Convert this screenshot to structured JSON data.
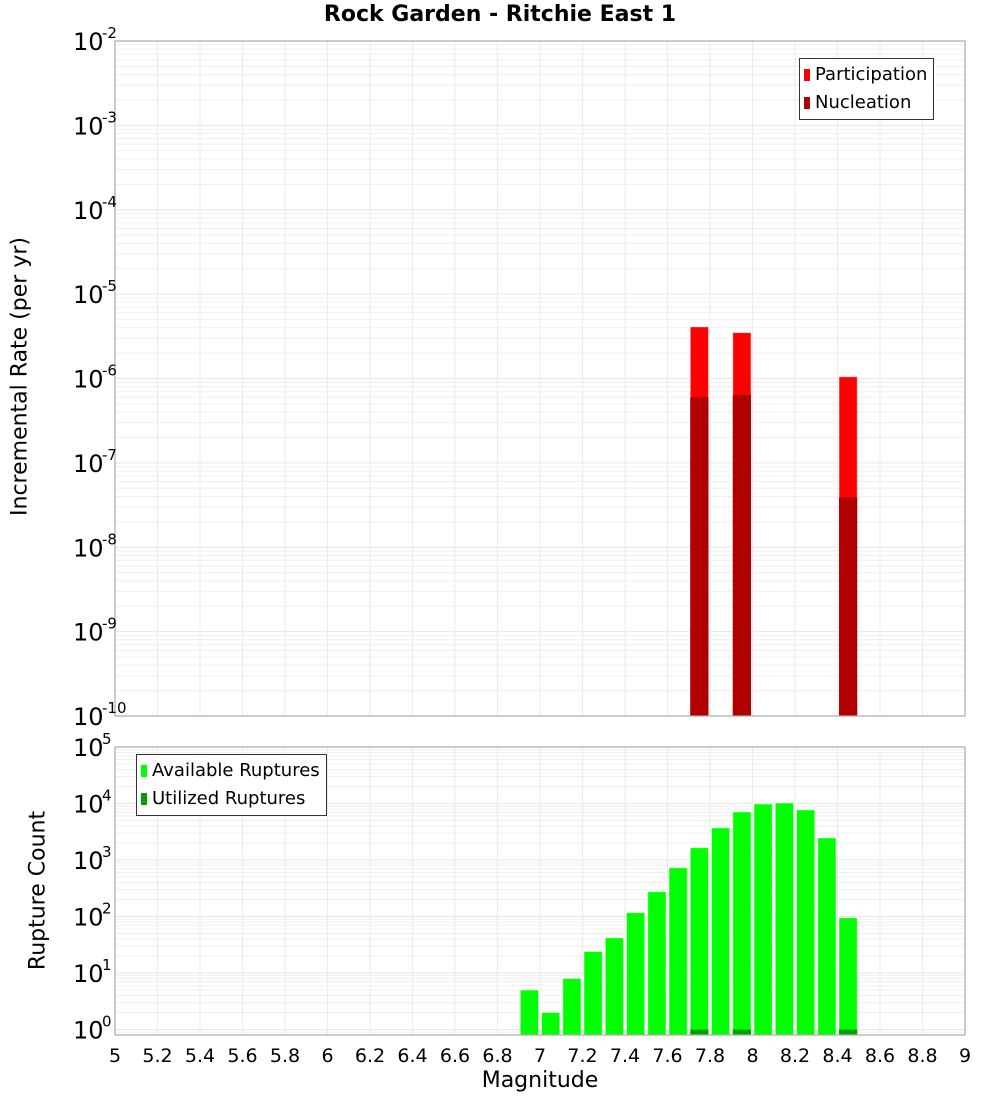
{
  "title": "Rock Garden - Ritchie East 1",
  "chart_data": [
    {
      "type": "bar",
      "title": "Rock Garden - Ritchie East 1",
      "xlabel": "Magnitude",
      "ylabel": "Incremental Rate (per yr)",
      "yscale": "log",
      "ylim": [
        1e-10,
        0.01
      ],
      "xlim": [
        5,
        9
      ],
      "x_ticks": [
        "5",
        "5.2",
        "5.4",
        "5.6",
        "5.8",
        "6",
        "6.2",
        "6.4",
        "6.6",
        "6.8",
        "7",
        "7.2",
        "7.4",
        "7.6",
        "7.8",
        "8",
        "8.2",
        "8.4",
        "8.6",
        "8.8",
        "9"
      ],
      "y_ticks": [
        "10^-2",
        "10^-3",
        "10^-4",
        "10^-5",
        "10^-6",
        "10^-7",
        "10^-8",
        "10^-9",
        "10^-10"
      ],
      "grid": true,
      "legend_position": "upper right",
      "x": [
        7.75,
        7.95,
        8.45
      ],
      "series": [
        {
          "name": "Participation",
          "color": "#ff0000",
          "values": [
            4.1e-06,
            3.5e-06,
            1.05e-06
          ]
        },
        {
          "name": "Nucleation",
          "color": "#b00000",
          "values": [
            6e-07,
            6.4e-07,
            3.9e-08
          ]
        }
      ]
    },
    {
      "type": "bar",
      "xlabel": "Magnitude",
      "ylabel": "Rupture Count",
      "yscale": "log",
      "ylim": [
        0.8,
        100000.0
      ],
      "xlim": [
        5,
        9
      ],
      "y_ticks": [
        "10^0",
        "10^1",
        "10^2",
        "10^3",
        "10^4",
        "10^5"
      ],
      "grid": true,
      "legend_position": "upper left",
      "x": [
        6.95,
        7.05,
        7.15,
        7.25,
        7.35,
        7.45,
        7.55,
        7.65,
        7.75,
        7.85,
        7.95,
        8.05,
        8.15,
        8.25,
        8.35,
        8.45
      ],
      "series": [
        {
          "name": "Available Ruptures",
          "color": "#00ff00",
          "values": [
            5,
            2,
            8,
            24,
            42,
            117,
            275,
            730,
            1650,
            3700,
            7100,
            9800,
            10200,
            7700,
            2460,
            95
          ]
        },
        {
          "name": "Utilized Ruptures",
          "color": "#00a000",
          "values": [
            0,
            0,
            0,
            0,
            0,
            0,
            0,
            0,
            1,
            0,
            1,
            0,
            0,
            0,
            0,
            1
          ]
        }
      ]
    }
  ],
  "top_legend": [
    {
      "label": "Participation",
      "color": "#ff0000"
    },
    {
      "label": "Nucleation",
      "color": "#b00000"
    }
  ],
  "bottom_legend": [
    {
      "label": "Available Ruptures",
      "color": "#00ff00"
    },
    {
      "label": "Utilized Ruptures",
      "color": "#00a000"
    }
  ],
  "top_ylabel": "Incremental Rate (per yr)",
  "bottom_ylabel": "Rupture Count",
  "xlabel": "Magnitude"
}
